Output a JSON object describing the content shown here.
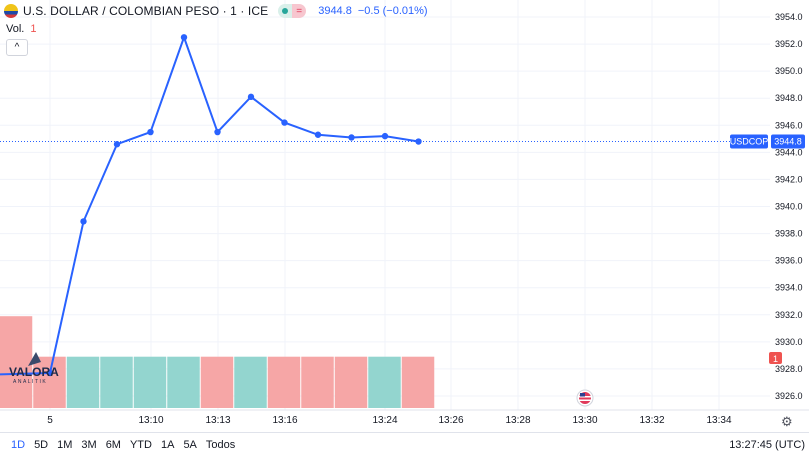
{
  "header": {
    "title": "U.S. DOLLAR / COLOMBIAN PESO · 1 · ICE",
    "price": "3944.8",
    "change": "−0.5 (−0.01%)",
    "pill_b_glyph": "=",
    "flag_icon": "us-colombia-flag-icon"
  },
  "volume": {
    "label": "Vol.",
    "value": "1",
    "collapse_glyph": "^"
  },
  "price_tag": {
    "symbol": "USDCOP",
    "value": "3944.8"
  },
  "volume_tag": "1",
  "logo": {
    "name": "VALORA",
    "sub": "ANALITIK"
  },
  "ranges": [
    "1D",
    "5D",
    "1M",
    "3M",
    "6M",
    "YTD",
    "1A",
    "5A",
    "Todos"
  ],
  "active_range": "1D",
  "clock": "13:27:45 (UTC)",
  "colors": {
    "line": "#2962ff",
    "up": "#26a69a",
    "down": "#ef5350",
    "grid": "#f0f3fa"
  },
  "chart_data": {
    "type": "line",
    "y_ticks": [
      3926.0,
      3928.0,
      3930.0,
      3932.0,
      3934.0,
      3936.0,
      3938.0,
      3940.0,
      3942.0,
      3944.0,
      3946.0,
      3948.0,
      3950.0,
      3952.0,
      3954.0
    ],
    "ylim": [
      3925.0,
      3955.0
    ],
    "x_tick_labels": [
      "5",
      "13:10",
      "13:13",
      "13:16",
      "13:24",
      "13:26",
      "13:28",
      "13:30",
      "13:32",
      "13:34"
    ],
    "x": [
      0,
      1,
      2,
      3,
      4,
      5,
      6,
      7,
      8,
      9,
      10,
      11,
      12,
      13
    ],
    "values": [
      3927.6,
      3927.7,
      3938.9,
      3944.6,
      3945.5,
      3952.5,
      3945.5,
      3948.1,
      3946.2,
      3945.3,
      3945.1,
      3945.2,
      3944.8,
      3944.8
    ],
    "last_value": 3944.8,
    "volume": {
      "bar_colors": [
        "down",
        "down",
        "up",
        "up",
        "up",
        "up",
        "down",
        "up",
        "down",
        "down",
        "down",
        "up",
        "down"
      ],
      "values": [
        1.7,
        0.95,
        0.95,
        0.95,
        0.95,
        0.95,
        0.95,
        0.95,
        0.95,
        0.95,
        0.95,
        0.95,
        0.95
      ]
    }
  }
}
